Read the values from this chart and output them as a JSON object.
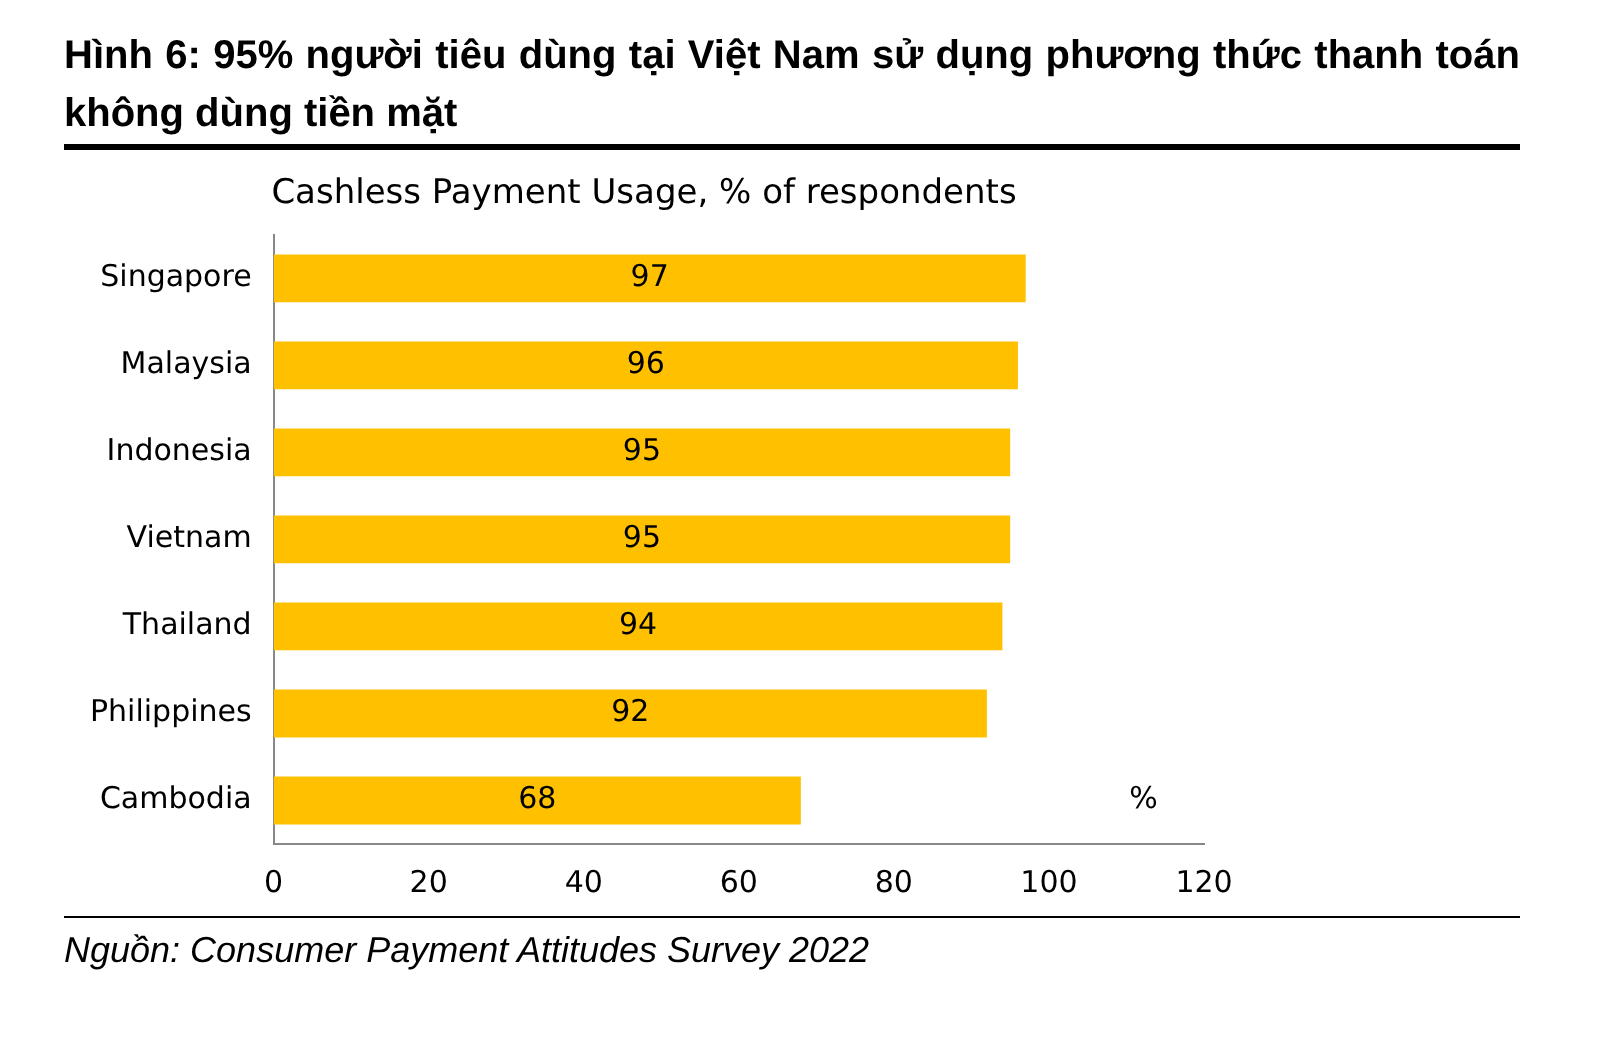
{
  "chart_data": {
    "type": "bar",
    "orientation": "horizontal",
    "title": "Hình 6: 95% người tiêu dùng tại Việt Nam sử dụng phương thức thanh toán không dùng tiền mặt",
    "subtitle": "Cashless Payment Usage, % of respondents",
    "categories": [
      "Singapore",
      "Malaysia",
      "Indonesia",
      "Vietnam",
      "Thailand",
      "Philippines",
      "Cambodia"
    ],
    "values": [
      97,
      96,
      95,
      95,
      94,
      92,
      68
    ],
    "color": "#ffc000",
    "data_labels": true,
    "xlim": [
      0,
      120
    ],
    "xticks": [
      0,
      20,
      40,
      60,
      80,
      100,
      120
    ],
    "grid": false,
    "legend": false,
    "annotations": [
      "%",
      "Nguồn: Consumer Payment Attitudes Survey 2022"
    ]
  }
}
